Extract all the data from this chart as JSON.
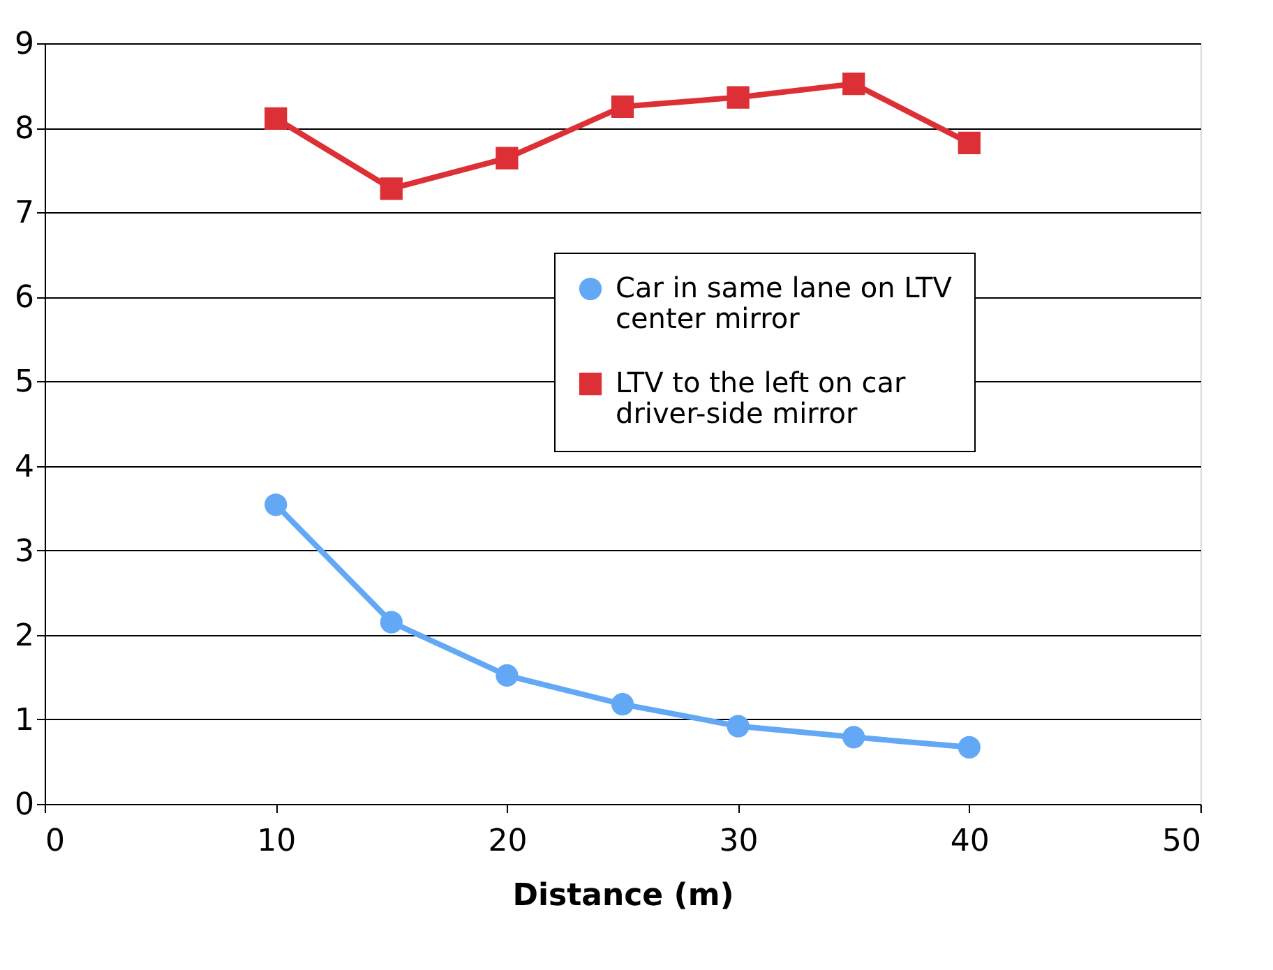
{
  "chart_data": {
    "type": "line",
    "xlabel": "Distance (m)",
    "x": [
      10,
      15,
      20,
      25,
      30,
      35,
      40
    ],
    "series": [
      {
        "name": "Car in same lane on LTV center mirror",
        "color": "#63a8f5",
        "marker": "circle",
        "values": [
          3.54,
          2.15,
          1.52,
          1.18,
          0.92,
          0.79,
          0.67
        ]
      },
      {
        "name": "LTV to the left on car driver-side mirror",
        "color": "#dd3036",
        "marker": "square",
        "values": [
          8.11,
          7.28,
          7.64,
          8.25,
          8.36,
          8.52,
          7.82
        ]
      }
    ],
    "xlim": [
      0,
      50
    ],
    "xticks": [
      0,
      10,
      20,
      30,
      40,
      50
    ],
    "ylim": [
      0,
      9
    ],
    "yticks": [
      0,
      1,
      2,
      3,
      4,
      5,
      6,
      7,
      8,
      9
    ],
    "grid": "y",
    "legend": "right",
    "line_style": "solid"
  }
}
